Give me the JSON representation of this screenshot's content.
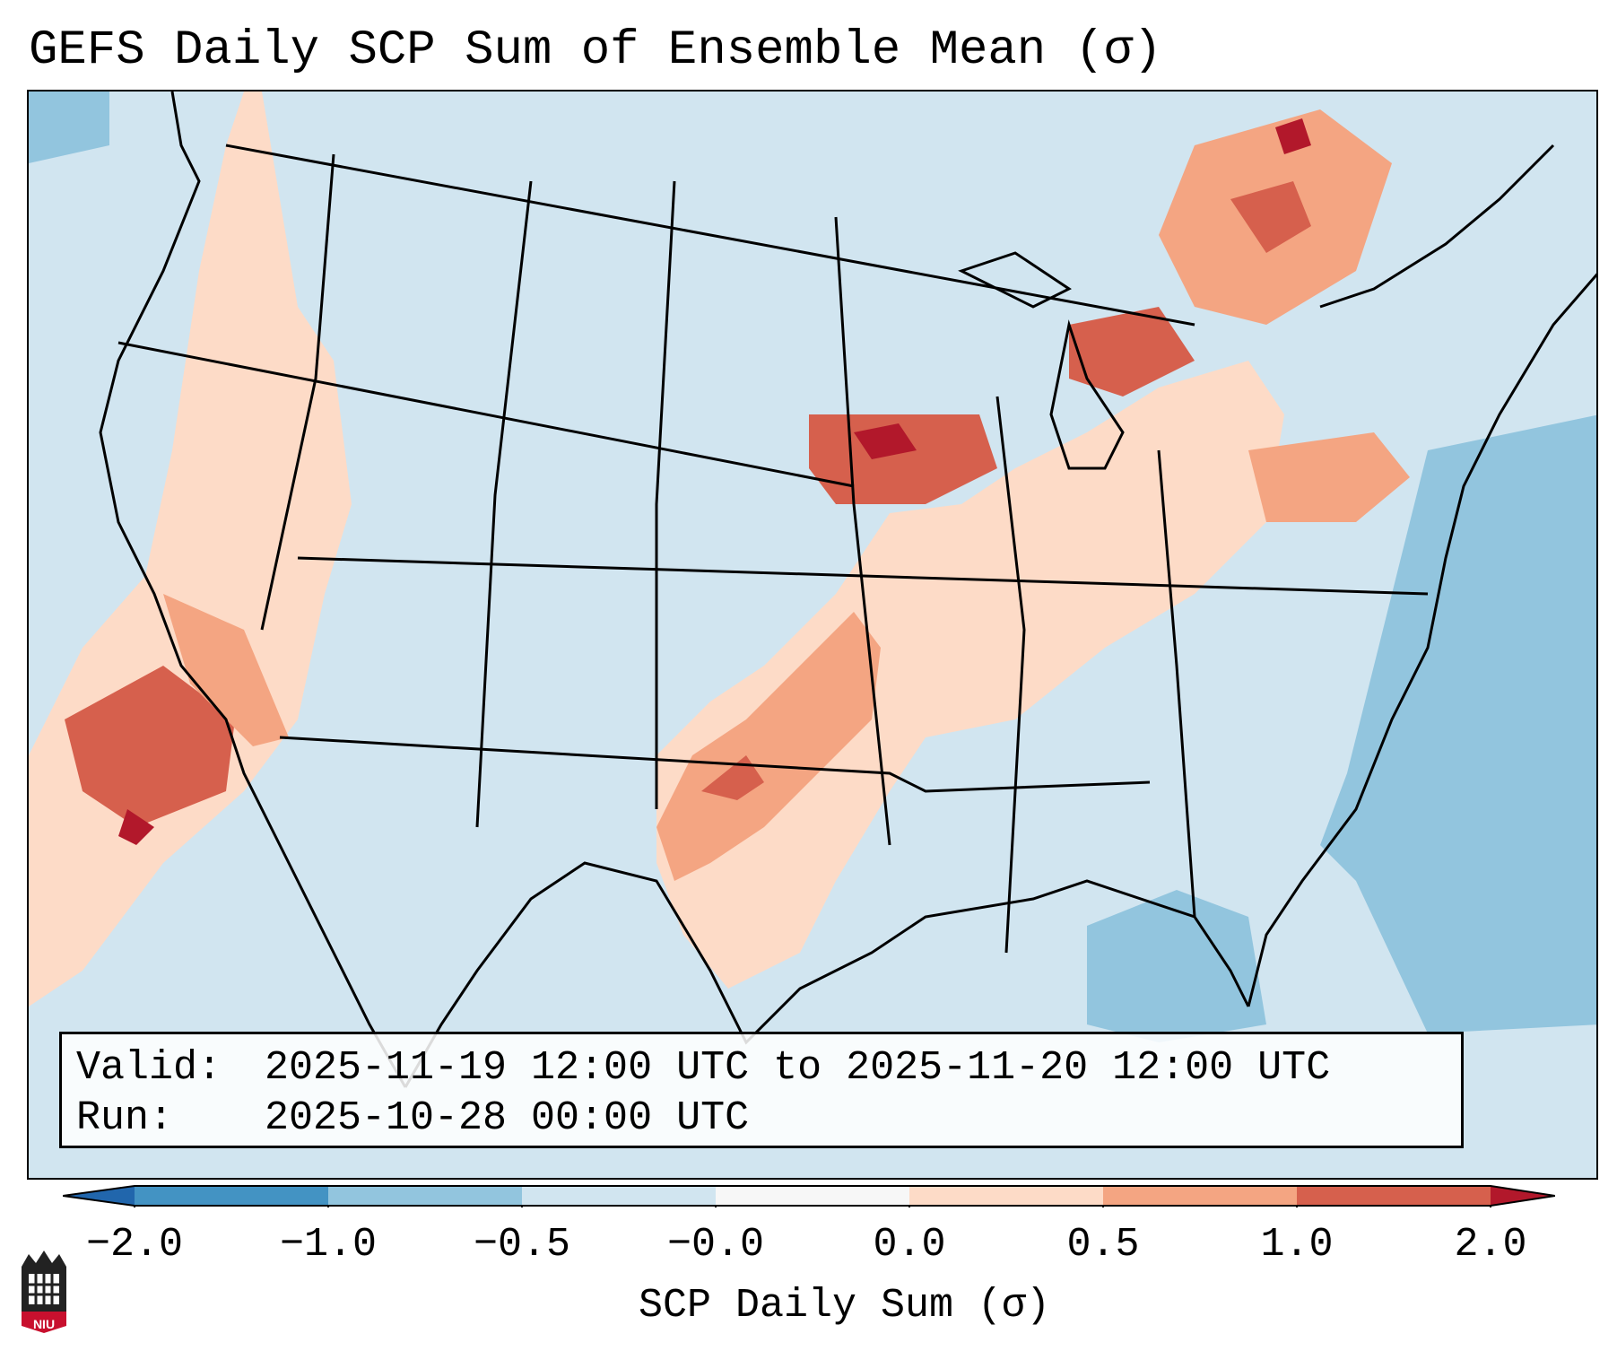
{
  "title": "GEFS Daily SCP Sum of Ensemble Mean (σ)",
  "info": {
    "valid_label": "Valid:",
    "valid_value": "2025-11-19 12:00 UTC to 2025-11-20 12:00 UTC",
    "run_label": "Run:",
    "run_value": "2025-10-28 00:00 UTC"
  },
  "colorbar": {
    "label": "SCP Daily Sum (σ)",
    "ticks": [
      "−2.0",
      "−1.0",
      "−0.5",
      "−0.0",
      "0.0",
      "0.5",
      "1.0",
      "2.0"
    ],
    "colors": {
      "below_min": "#2166ac",
      "bin_-2_-1": "#4393c3",
      "bin_-1_-0.5": "#92c5de",
      "bin_-0.5_0": "#d1e5f0",
      "bin_0": "#f7f7f7",
      "bin_0_0.5": "#fddbc7",
      "bin_0.5_1": "#f4a582",
      "bin_1_2": "#d6604d",
      "above_max": "#b2182b"
    }
  },
  "map": {
    "region": "Contiguous United States",
    "background_value_bin": "-0.5 to 0"
  },
  "logo": {
    "text": "NIU"
  }
}
